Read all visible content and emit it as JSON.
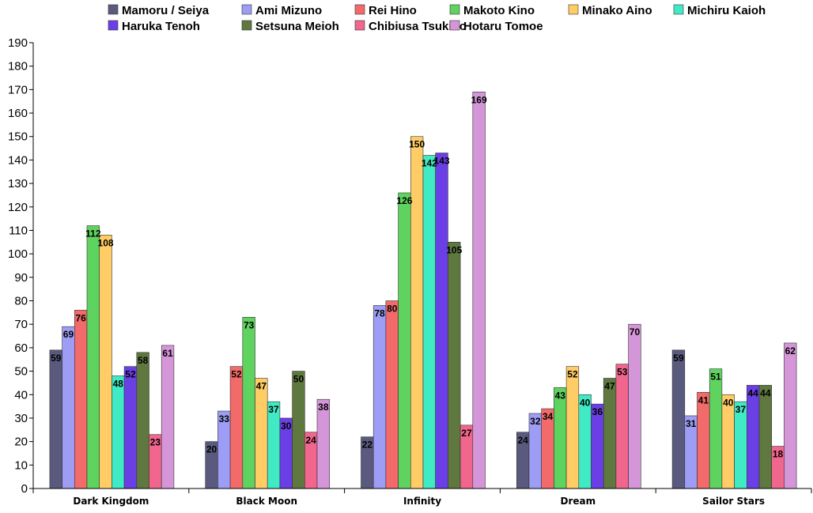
{
  "chart_data": {
    "type": "bar",
    "categories": [
      "Dark Kingdom",
      "Black Moon",
      "Infinity",
      "Dream",
      "Sailor Stars"
    ],
    "ylim": [
      0,
      190
    ],
    "yticks": [
      0,
      10,
      20,
      30,
      40,
      50,
      60,
      70,
      80,
      90,
      100,
      110,
      120,
      130,
      140,
      150,
      160,
      170,
      180,
      190
    ],
    "legend_position": "top",
    "grid": false,
    "series": [
      {
        "name": "Mamoru / Seiya",
        "color": "#5a5a7e",
        "values": [
          59,
          20,
          22,
          24,
          59
        ]
      },
      {
        "name": "Ami Mizuno",
        "color": "#9d9df5",
        "values": [
          69,
          33,
          78,
          32,
          31
        ]
      },
      {
        "name": "Rei Hino",
        "color": "#f26a6a",
        "values": [
          76,
          52,
          80,
          34,
          41
        ]
      },
      {
        "name": "Makoto Kino",
        "color": "#5fd35f",
        "values": [
          112,
          73,
          126,
          43,
          51
        ]
      },
      {
        "name": "Minako Aino",
        "color": "#ffcc66",
        "values": [
          108,
          47,
          150,
          52,
          40
        ]
      },
      {
        "name": "Michiru Kaioh",
        "color": "#40eac4",
        "values": [
          48,
          37,
          142,
          40,
          37
        ]
      },
      {
        "name": "Haruka Tenoh",
        "color": "#6a40e6",
        "values": [
          52,
          30,
          143,
          36,
          44
        ]
      },
      {
        "name": "Setsuna Meioh",
        "color": "#5e7840",
        "values": [
          58,
          50,
          105,
          47,
          44
        ]
      },
      {
        "name": "Chibiusa Tsukino",
        "color": "#f0668c",
        "values": [
          23,
          24,
          27,
          53,
          18
        ]
      },
      {
        "name": "Hotaru Tomoe",
        "color": "#d496d8",
        "values": [
          61,
          38,
          169,
          70,
          62
        ]
      }
    ]
  }
}
